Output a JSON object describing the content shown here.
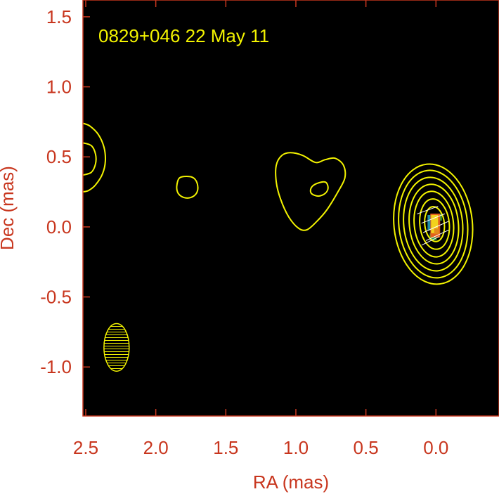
{
  "colors": {
    "background": "#000000",
    "axis_text": "#c8361e",
    "contour": "#f3f300",
    "frame": "#c8361e",
    "polarization_ticks": "#ffffff"
  },
  "chart_data": {
    "type": "contour",
    "title": "0829+046   22 May 11",
    "xlabel": "RA (mas)",
    "ylabel": "Dec (mas)",
    "xlim": [
      2.52,
      -0.45
    ],
    "ylim": [
      -1.35,
      1.62
    ],
    "xticks": [
      2.5,
      2.0,
      1.5,
      1.0,
      0.5,
      0.0
    ],
    "xtick_labels": [
      "2.5",
      "2.0",
      "1.5",
      "1.0",
      "0.5",
      "0.0"
    ],
    "yticks": [
      1.5,
      1.0,
      0.5,
      0.0,
      -0.5,
      -1.0
    ],
    "ytick_labels": [
      "1.5",
      "1.0",
      "0.5",
      "0.0",
      "-0.5",
      "-1.0"
    ],
    "core": {
      "ra": 0.0,
      "dec": 0.03
    },
    "contours": [
      {
        "points": [
          [
            2.52,
            0.74
          ],
          [
            2.47,
            0.72
          ],
          [
            2.41,
            0.66
          ],
          [
            2.37,
            0.57
          ],
          [
            2.36,
            0.47
          ],
          [
            2.38,
            0.38
          ],
          [
            2.43,
            0.3
          ],
          [
            2.48,
            0.26
          ],
          [
            2.52,
            0.25
          ]
        ]
      },
      {
        "points": [
          [
            2.52,
            0.6
          ],
          [
            2.46,
            0.58
          ],
          [
            2.43,
            0.52
          ],
          [
            2.43,
            0.45
          ],
          [
            2.46,
            0.39
          ],
          [
            2.52,
            0.37
          ]
        ]
      },
      {
        "points": [
          [
            1.76,
            0.36
          ],
          [
            1.72,
            0.34
          ],
          [
            1.7,
            0.29
          ],
          [
            1.71,
            0.24
          ],
          [
            1.75,
            0.21
          ],
          [
            1.8,
            0.21
          ],
          [
            1.84,
            0.24
          ],
          [
            1.85,
            0.29
          ],
          [
            1.83,
            0.35
          ]
        ],
        "closed": true
      },
      {
        "points": [
          [
            1.1,
            0.51
          ],
          [
            1.04,
            0.53
          ],
          [
            0.95,
            0.51
          ],
          [
            0.86,
            0.46
          ],
          [
            0.79,
            0.48
          ],
          [
            0.72,
            0.49
          ],
          [
            0.66,
            0.44
          ],
          [
            0.65,
            0.35
          ],
          [
            0.7,
            0.25
          ],
          [
            0.78,
            0.12
          ],
          [
            0.85,
            0.04
          ],
          [
            0.92,
            -0.02
          ],
          [
            0.98,
            -0.01
          ],
          [
            1.05,
            0.07
          ],
          [
            1.11,
            0.2
          ],
          [
            1.14,
            0.32
          ],
          [
            1.14,
            0.44
          ]
        ],
        "closed": true
      },
      {
        "points": [
          [
            0.79,
            0.32
          ],
          [
            0.77,
            0.28
          ],
          [
            0.79,
            0.24
          ],
          [
            0.84,
            0.22
          ],
          [
            0.89,
            0.24
          ],
          [
            0.89,
            0.28
          ],
          [
            0.85,
            0.31
          ]
        ],
        "closed": true
      }
    ],
    "core_contours": [
      {
        "ra": 0.02,
        "dec": 0.02,
        "rx": 0.28,
        "ry": 0.43,
        "tilt": -6
      },
      {
        "ra": 0.02,
        "dec": 0.02,
        "rx": 0.245,
        "ry": 0.385,
        "tilt": -6
      },
      {
        "ra": 0.02,
        "dec": 0.02,
        "rx": 0.21,
        "ry": 0.335,
        "tilt": -6
      },
      {
        "ra": 0.015,
        "dec": 0.02,
        "rx": 0.175,
        "ry": 0.285,
        "tilt": -6
      },
      {
        "ra": 0.015,
        "dec": 0.02,
        "rx": 0.14,
        "ry": 0.235,
        "tilt": -6
      },
      {
        "ra": 0.01,
        "dec": 0.02,
        "rx": 0.105,
        "ry": 0.18,
        "tilt": -6
      },
      {
        "ra": 0.01,
        "dec": 0.02,
        "rx": 0.07,
        "ry": 0.125,
        "tilt": -6
      }
    ],
    "polarization_ticks": [
      {
        "ra": 0.06,
        "dec": 0.12,
        "len": 0.16,
        "angle": 20
      },
      {
        "ra": 0.02,
        "dec": 0.06,
        "len": 0.18,
        "angle": 22
      },
      {
        "ra": 0.0,
        "dec": 0.0,
        "len": 0.2,
        "angle": 24
      },
      {
        "ra": -0.01,
        "dec": -0.06,
        "len": 0.18,
        "angle": 25
      },
      {
        "ra": 0.04,
        "dec": -0.1,
        "len": 0.14,
        "angle": 26
      }
    ],
    "color_pixels": [
      {
        "ra": 0.035,
        "dec": 0.03,
        "w": 0.05,
        "h": 0.11,
        "color": "#1f8fa8"
      },
      {
        "ra": -0.025,
        "dec": 0.07,
        "w": 0.035,
        "h": 0.05,
        "color": "#2e9a3c"
      },
      {
        "ra": 0.02,
        "dec": -0.07,
        "w": 0.05,
        "h": 0.05,
        "color": "#2e9a3c"
      },
      {
        "ra": 0.005,
        "dec": 0.01,
        "w": 0.07,
        "h": 0.17,
        "color": "#e4601c"
      },
      {
        "ra": 0.01,
        "dec": 0.02,
        "w": 0.05,
        "h": 0.13,
        "color": "#f2d21d"
      },
      {
        "ra": -0.005,
        "dec": -0.03,
        "w": 0.035,
        "h": 0.04,
        "color": "#e4881c"
      }
    ],
    "beam": {
      "ra": 2.28,
      "dec": -0.86,
      "major": 0.34,
      "minor": 0.18,
      "pa": 0
    }
  }
}
